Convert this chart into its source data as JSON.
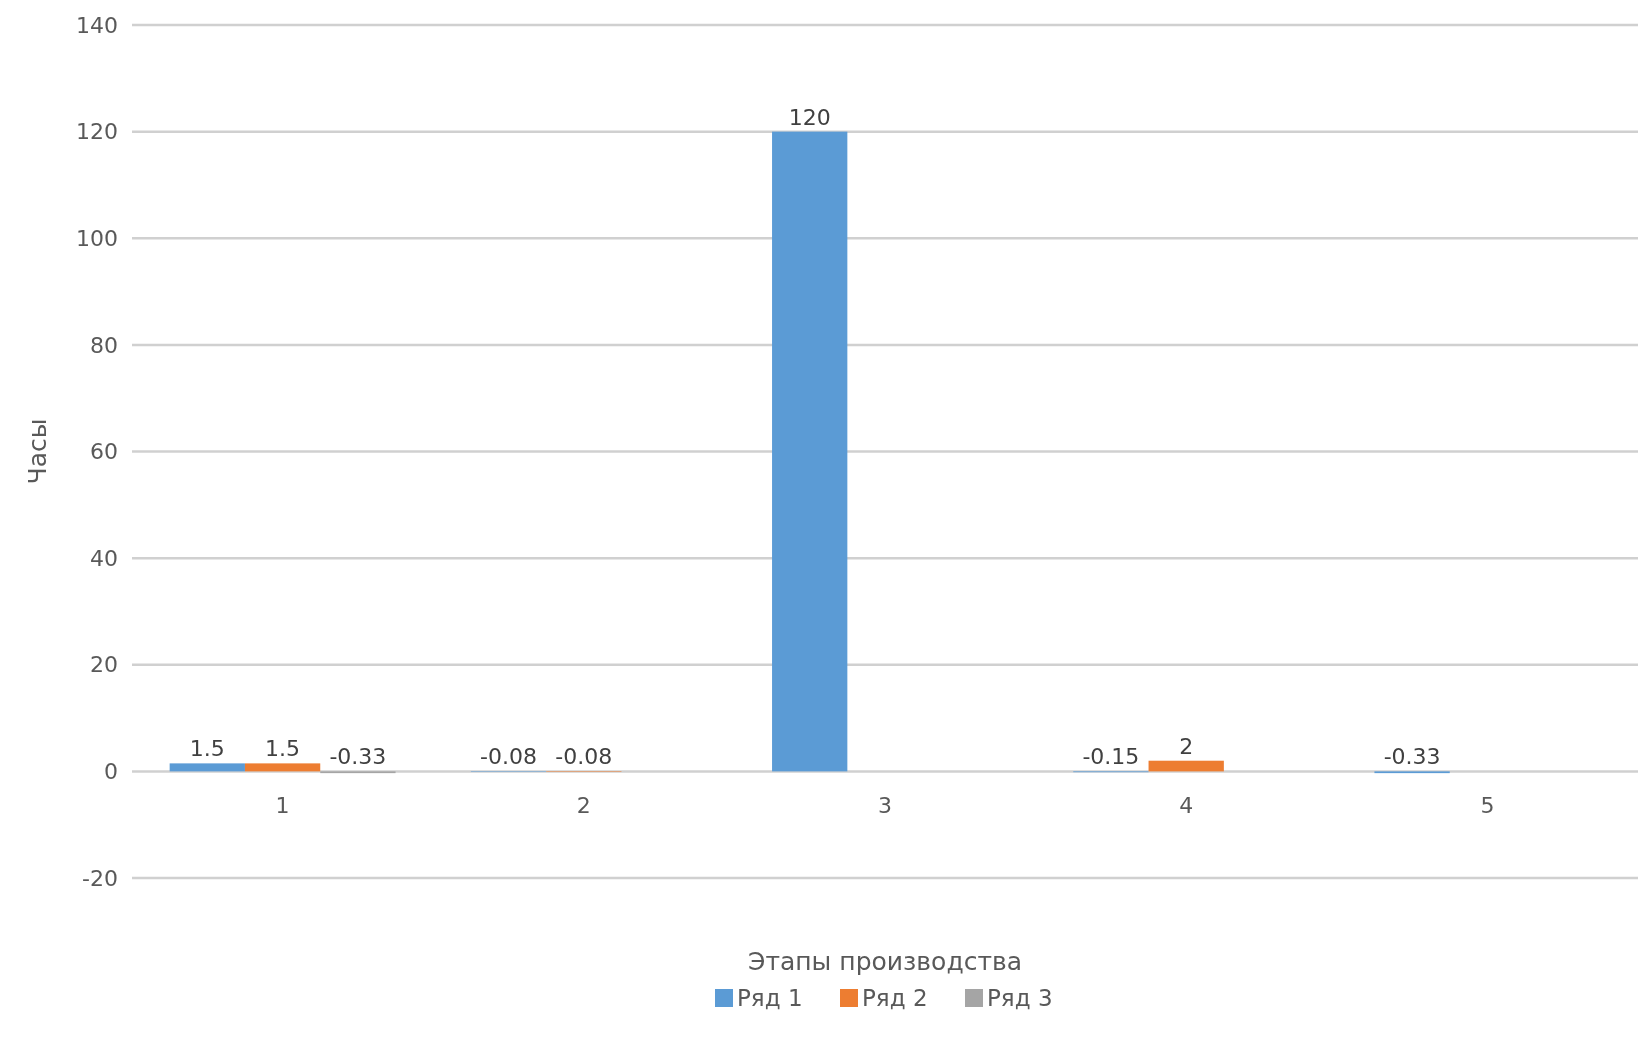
{
  "chart_data": {
    "type": "bar",
    "xlabel": "Этапы производства",
    "ylabel": "Часы",
    "categories": [
      "1",
      "2",
      "3",
      "4",
      "5"
    ],
    "series": [
      {
        "name": "Ряд 1",
        "color": "#5b9bd5",
        "values": [
          1.5,
          -0.08,
          120,
          -0.15,
          -0.33
        ]
      },
      {
        "name": "Ряд 2",
        "color": "#ed7d31",
        "values": [
          1.5,
          -0.08,
          null,
          2,
          null
        ]
      },
      {
        "name": "Ряд 3",
        "color": "#a5a5a5",
        "values": [
          -0.33,
          null,
          null,
          null,
          null
        ]
      }
    ],
    "ylim": [
      -20,
      140
    ],
    "yticks": [
      -20,
      0,
      20,
      40,
      60,
      80,
      100,
      120,
      140
    ],
    "grid": "y",
    "legend": "bottom",
    "data_labels": true
  }
}
